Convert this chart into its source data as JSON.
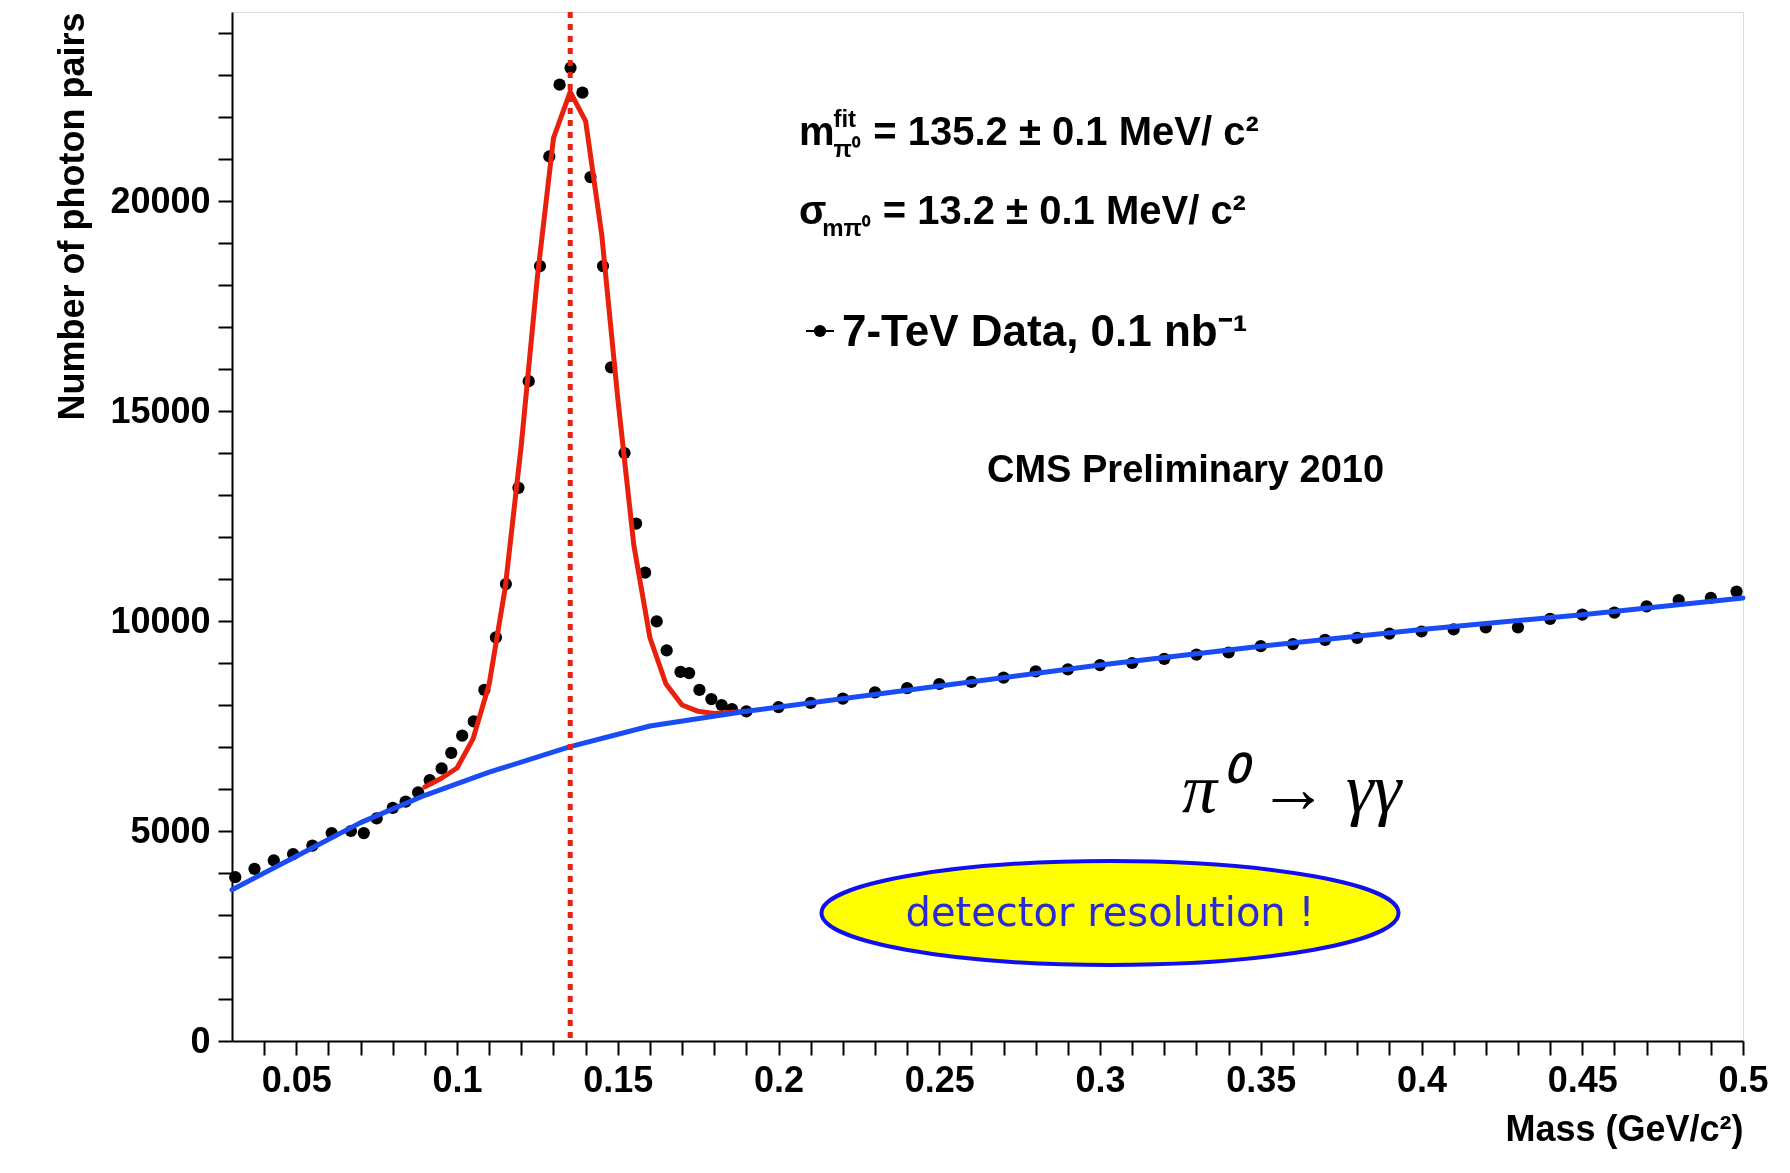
{
  "chart_data": {
    "type": "scatter",
    "xlabel": "Mass (GeV/c²)",
    "ylabel": "Number of photon pairs",
    "xlim": [
      0.03,
      0.5
    ],
    "ylim": [
      0,
      24500
    ],
    "xticks": [
      {
        "value": 0.04,
        "label": null
      },
      0.05,
      {
        "value": 0.06,
        "label": null
      },
      {
        "value": 0.07,
        "label": null
      },
      {
        "value": 0.08,
        "label": null
      },
      {
        "value": 0.09,
        "label": null
      },
      0.1,
      {
        "value": 0.11,
        "label": null
      },
      {
        "value": 0.12,
        "label": null
      },
      {
        "value": 0.13,
        "label": null
      },
      {
        "value": 0.14,
        "label": null
      },
      0.15,
      {
        "value": 0.16,
        "label": null
      },
      {
        "value": 0.17,
        "label": null
      },
      {
        "value": 0.18,
        "label": null
      },
      {
        "value": 0.19,
        "label": null
      },
      0.2,
      {
        "value": 0.21,
        "label": null
      },
      {
        "value": 0.22,
        "label": null
      },
      {
        "value": 0.23,
        "label": null
      },
      {
        "value": 0.24,
        "label": null
      },
      0.25,
      {
        "value": 0.26,
        "label": null
      },
      {
        "value": 0.27,
        "label": null
      },
      {
        "value": 0.28,
        "label": null
      },
      {
        "value": 0.29,
        "label": null
      },
      0.3,
      {
        "value": 0.31,
        "label": null
      },
      {
        "value": 0.32,
        "label": null
      },
      {
        "value": 0.33,
        "label": null
      },
      {
        "value": 0.34,
        "label": null
      },
      0.35,
      {
        "value": 0.36,
        "label": null
      },
      {
        "value": 0.37,
        "label": null
      },
      {
        "value": 0.38,
        "label": null
      },
      {
        "value": 0.39,
        "label": null
      },
      0.4,
      {
        "value": 0.41,
        "label": null
      },
      {
        "value": 0.42,
        "label": null
      },
      {
        "value": 0.43,
        "label": null
      },
      {
        "value": 0.44,
        "label": null
      },
      0.45,
      {
        "value": 0.46,
        "label": null
      },
      {
        "value": 0.47,
        "label": null
      },
      {
        "value": 0.48,
        "label": null
      },
      {
        "value": 0.49,
        "label": null
      },
      0.5
    ],
    "yticks": [
      0,
      {
        "value": 1000,
        "label": null
      },
      {
        "value": 2000,
        "label": null
      },
      {
        "value": 3000,
        "label": null
      },
      {
        "value": 4000,
        "label": null
      },
      5000,
      {
        "value": 6000,
        "label": null
      },
      {
        "value": 7000,
        "label": null
      },
      {
        "value": 8000,
        "label": null
      },
      {
        "value": 9000,
        "label": null
      },
      10000,
      {
        "value": 11000,
        "label": null
      },
      {
        "value": 12000,
        "label": null
      },
      {
        "value": 13000,
        "label": null
      },
      {
        "value": 14000,
        "label": null
      },
      15000,
      {
        "value": 16000,
        "label": null
      },
      {
        "value": 17000,
        "label": null
      },
      {
        "value": 18000,
        "label": null
      },
      {
        "value": 19000,
        "label": null
      },
      20000,
      {
        "value": 21000,
        "label": null
      },
      {
        "value": 22000,
        "label": null
      },
      {
        "value": 23000,
        "label": null
      },
      {
        "value": 24000,
        "label": null
      }
    ],
    "grid": false,
    "legend": "top right",
    "series": [
      {
        "name": "7-TeV Data, 0.1 nb⁻¹",
        "color": "#000000",
        "marker": "circle",
        "x": [
          0.031,
          0.037,
          0.043,
          0.049,
          0.055,
          0.061,
          0.067,
          0.071,
          0.075,
          0.08,
          0.084,
          0.0879,
          0.0915,
          0.0952,
          0.0982,
          0.1016,
          0.1052,
          0.1085,
          0.1121,
          0.1152,
          0.1191,
          0.1223,
          0.1258,
          0.1287,
          0.1319,
          0.1353,
          0.139,
          0.1415,
          0.1454,
          0.1479,
          0.1521,
          0.1557,
          0.1585,
          0.1621,
          0.1652,
          0.1695,
          0.1722,
          0.1754,
          0.1791,
          0.1823,
          0.1855,
          0.19,
          0.2,
          0.21,
          0.22,
          0.23,
          0.24,
          0.25,
          0.26,
          0.27,
          0.28,
          0.29,
          0.3,
          0.31,
          0.32,
          0.33,
          0.34,
          0.35,
          0.36,
          0.37,
          0.38,
          0.39,
          0.4,
          0.41,
          0.42,
          0.43,
          0.44,
          0.45,
          0.46,
          0.47,
          0.48,
          0.49,
          0.498
        ],
        "values": [
          3900,
          4100,
          4300,
          4450,
          4650,
          4950,
          5000,
          4950,
          5300,
          5550,
          5700,
          5920,
          6210,
          6490,
          6860,
          7270,
          7610,
          8360,
          9610,
          10880,
          13170,
          15710,
          18450,
          21060,
          22770,
          23170,
          22580,
          20570,
          18450,
          16040,
          14000,
          12320,
          11150,
          9990,
          9300,
          8790,
          8760,
          8360,
          8140,
          8000,
          7900,
          7850,
          7950,
          8050,
          8150,
          8300,
          8400,
          8500,
          8550,
          8650,
          8800,
          8850,
          8950,
          9000,
          9100,
          9200,
          9250,
          9400,
          9450,
          9550,
          9600,
          9700,
          9750,
          9800,
          9850,
          9850,
          10050,
          10150,
          10200,
          10350,
          10500,
          10550,
          10700
        ]
      },
      {
        "type": "line",
        "color": "#e8200c",
        "line_style": "solid",
        "x": [
          0.09,
          0.095,
          0.1,
          0.105,
          0.11,
          0.115,
          0.12,
          0.125,
          0.13,
          0.1352,
          0.14,
          0.145,
          0.15,
          0.155,
          0.16,
          0.165,
          0.17,
          0.175,
          0.18,
          0.19
        ],
        "values": [
          6050,
          6250,
          6500,
          7200,
          8500,
          10800,
          14200,
          18200,
          21500,
          22600,
          21900,
          19200,
          15300,
          11800,
          9600,
          8500,
          8000,
          7850,
          7800,
          7850
        ]
      },
      {
        "type": "line",
        "color": "#1a4cf5",
        "line_style": "solid",
        "x": [
          0.03,
          0.05,
          0.07,
          0.09,
          0.11,
          0.1352,
          0.16,
          0.19,
          0.25,
          0.3,
          0.35,
          0.4,
          0.45,
          0.5
        ],
        "values": [
          3600,
          4400,
          5200,
          5850,
          6400,
          7010,
          7500,
          7850,
          8450,
          8950,
          9400,
          9800,
          10150,
          10550
        ]
      }
    ],
    "ref_lines": [
      {
        "axis": "x",
        "value": 0.1352,
        "color": "#e8200c",
        "line_style": "dotted"
      }
    ],
    "annotations": [
      "m$^{fit}$$_{π⁰}$ = 135.2 ± 0.1 MeV/ c²",
      "σ$_{mπ⁰}$ = 13.2 ± 0.1 MeV/ c²",
      "CMS Preliminary 2010",
      "π⁰ → γγ",
      "detector resolution !"
    ]
  }
}
